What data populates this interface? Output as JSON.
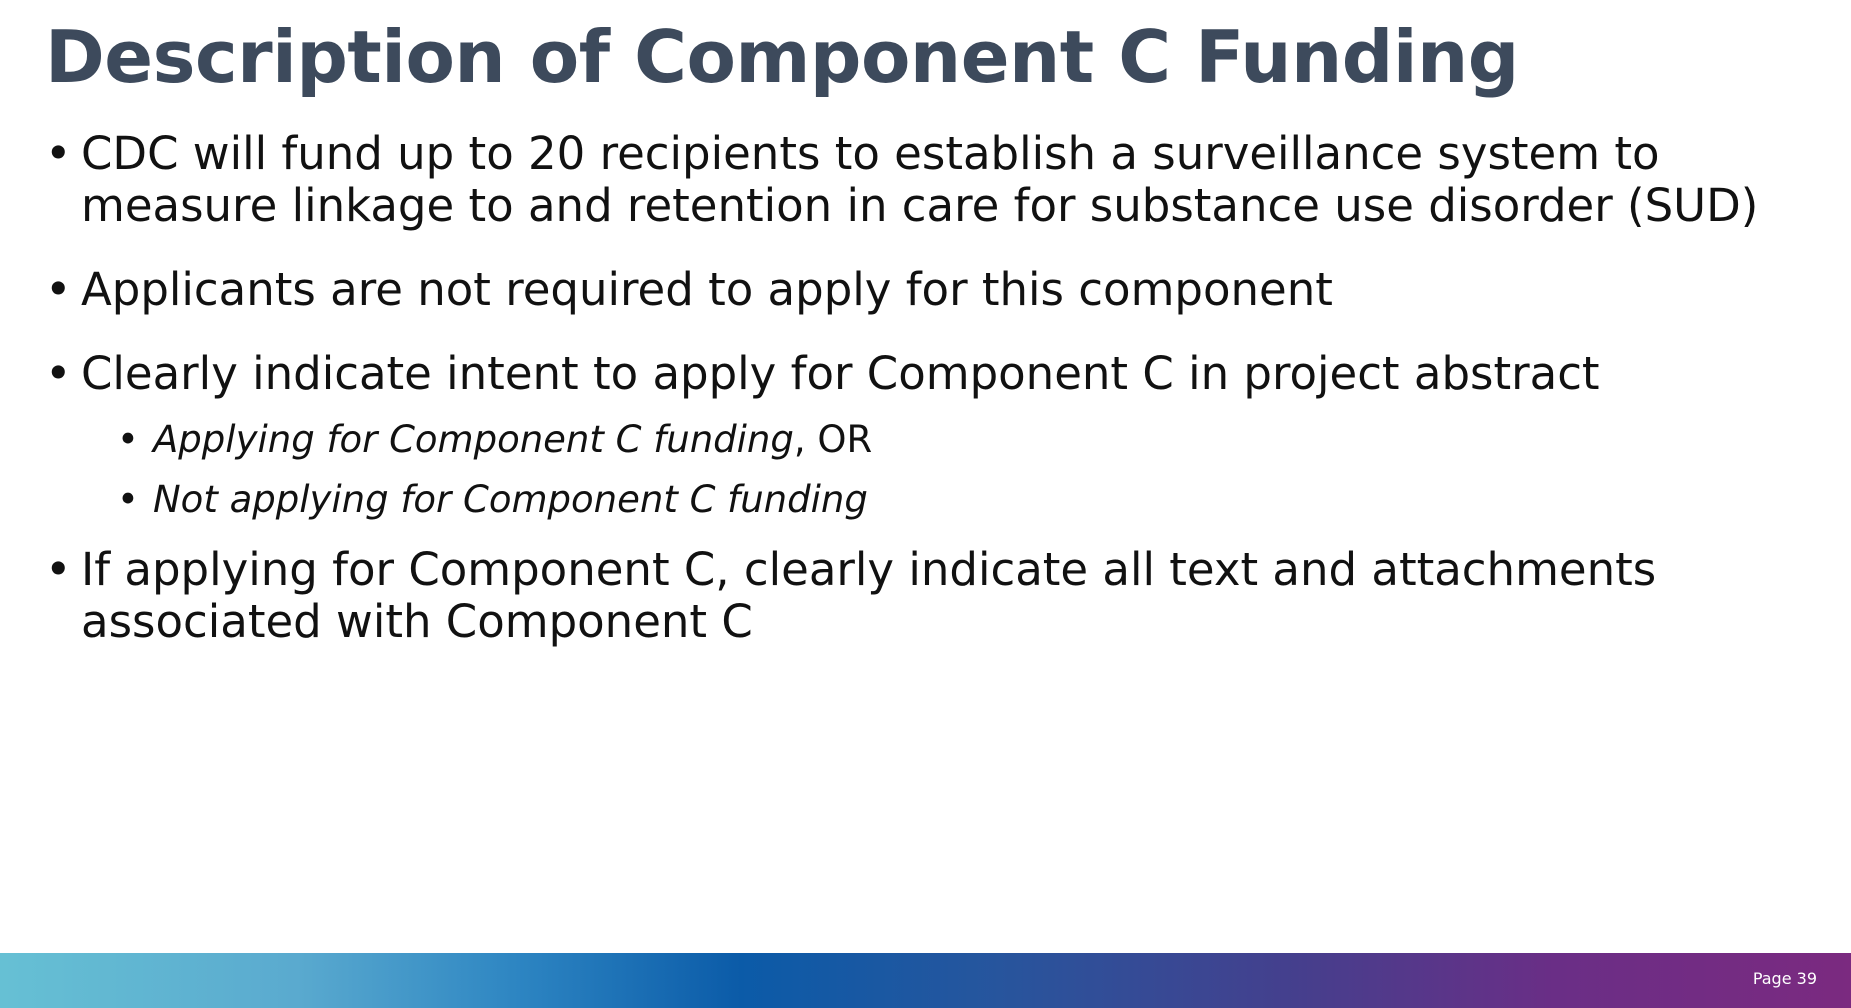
{
  "slide": {
    "title": "Description of Component C Funding",
    "bullets": [
      {
        "text": "CDC will fund up to 20 recipients to establish a surveillance system to measure linkage to and retention in care for substance use disorder (SUD)"
      },
      {
        "text": "Applicants are not required to apply for this component"
      },
      {
        "text": "Clearly indicate intent to apply for Component C in project abstract"
      },
      {
        "text": "If applying for Component C, clearly indicate all text and attachments associated with Component C"
      }
    ],
    "sub_bullets": [
      {
        "italic": "Applying for Component C funding",
        "rest": ", OR"
      },
      {
        "italic": "Not applying for Component C funding",
        "rest": ""
      }
    ]
  },
  "footer": {
    "page_label": "Page 39"
  },
  "colors": {
    "title": "#3d4a5c",
    "body_text": "#111111",
    "footer_gradient": [
      "#66c0d4",
      "#0b5ba8",
      "#7b2a80"
    ]
  }
}
